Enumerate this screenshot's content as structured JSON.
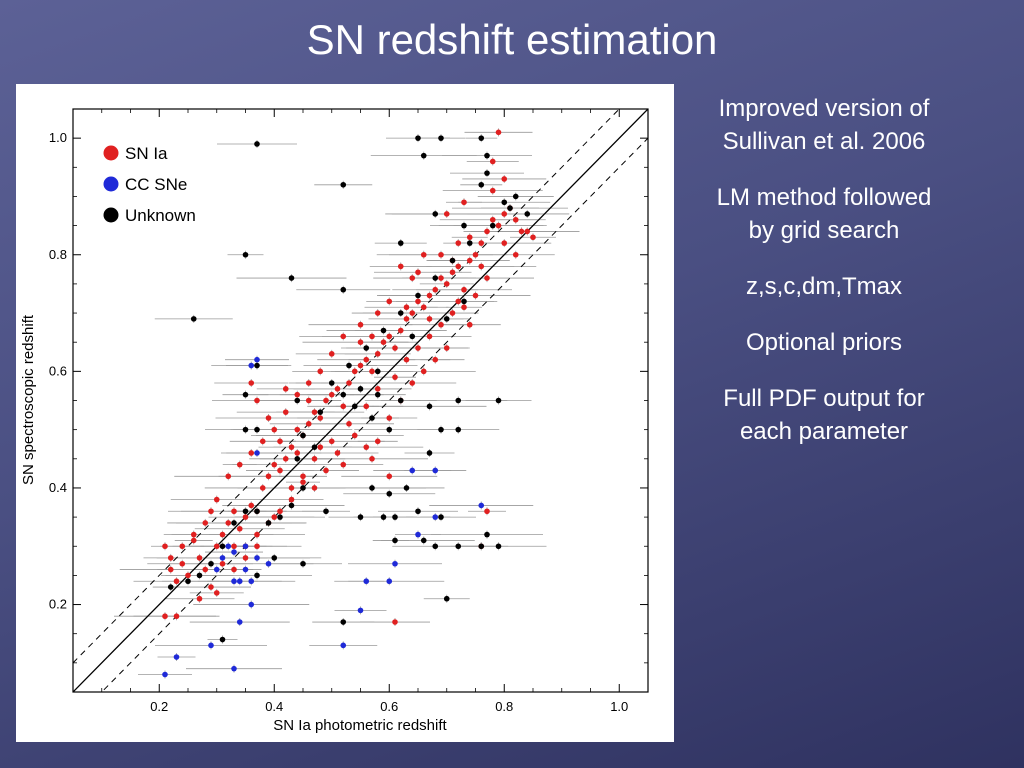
{
  "slide": {
    "title": "SN redshift estimation",
    "bullets": [
      {
        "lines": [
          "Improved version of",
          "Sullivan et al. 2006"
        ]
      },
      {
        "lines": [
          "LM method followed",
          "by grid search"
        ]
      },
      {
        "lines": [
          "z,s,c,dm,Tmax"
        ]
      },
      {
        "lines": [
          "Optional priors"
        ]
      },
      {
        "lines": [
          "Full PDF output for",
          "each parameter"
        ]
      }
    ]
  },
  "chart_data": {
    "type": "scatter",
    "xlabel": "SN Ia photometric redshift",
    "ylabel": "SN spectroscopic redshift",
    "xlim": [
      0.05,
      1.05
    ],
    "ylim": [
      0.05,
      1.05
    ],
    "xticks": [
      "0.2",
      "0.4",
      "0.6",
      "0.8",
      "1.0"
    ],
    "yticks": [
      "0.2",
      "0.4",
      "0.6",
      "0.8",
      "1.0"
    ],
    "reference_lines": [
      "y = x (solid)",
      "y = x ± 0.05 (dashed)"
    ],
    "legend_position": "top-left",
    "series": [
      {
        "name": "SN Ia",
        "color": "#e02020",
        "points": [
          [
            0.21,
            0.3
          ],
          [
            0.22,
            0.26
          ],
          [
            0.23,
            0.24
          ],
          [
            0.24,
            0.27
          ],
          [
            0.25,
            0.25
          ],
          [
            0.26,
            0.31
          ],
          [
            0.27,
            0.28
          ],
          [
            0.28,
            0.26
          ],
          [
            0.29,
            0.23
          ],
          [
            0.3,
            0.3
          ],
          [
            0.31,
            0.27
          ],
          [
            0.32,
            0.34
          ],
          [
            0.33,
            0.36
          ],
          [
            0.34,
            0.33
          ],
          [
            0.35,
            0.35
          ],
          [
            0.36,
            0.37
          ],
          [
            0.37,
            0.36
          ],
          [
            0.38,
            0.4
          ],
          [
            0.39,
            0.42
          ],
          [
            0.4,
            0.44
          ],
          [
            0.41,
            0.43
          ],
          [
            0.42,
            0.45
          ],
          [
            0.43,
            0.47
          ],
          [
            0.44,
            0.5
          ],
          [
            0.45,
            0.49
          ],
          [
            0.46,
            0.51
          ],
          [
            0.47,
            0.53
          ],
          [
            0.48,
            0.52
          ],
          [
            0.49,
            0.55
          ],
          [
            0.5,
            0.56
          ],
          [
            0.51,
            0.57
          ],
          [
            0.52,
            0.54
          ],
          [
            0.53,
            0.58
          ],
          [
            0.54,
            0.6
          ],
          [
            0.55,
            0.61
          ],
          [
            0.56,
            0.62
          ],
          [
            0.57,
            0.6
          ],
          [
            0.58,
            0.63
          ],
          [
            0.59,
            0.65
          ],
          [
            0.6,
            0.66
          ],
          [
            0.61,
            0.64
          ],
          [
            0.62,
            0.67
          ],
          [
            0.63,
            0.69
          ],
          [
            0.64,
            0.7
          ],
          [
            0.65,
            0.72
          ],
          [
            0.66,
            0.71
          ],
          [
            0.67,
            0.73
          ],
          [
            0.68,
            0.74
          ],
          [
            0.69,
            0.76
          ],
          [
            0.7,
            0.75
          ],
          [
            0.71,
            0.77
          ],
          [
            0.72,
            0.78
          ],
          [
            0.73,
            0.74
          ],
          [
            0.74,
            0.79
          ],
          [
            0.75,
            0.8
          ],
          [
            0.76,
            0.82
          ],
          [
            0.77,
            0.84
          ],
          [
            0.78,
            0.86
          ],
          [
            0.79,
            0.85
          ],
          [
            0.8,
            0.87
          ],
          [
            0.81,
            0.88
          ],
          [
            0.82,
            0.86
          ],
          [
            0.83,
            0.84
          ],
          [
            0.78,
            0.91
          ],
          [
            0.8,
            0.93
          ],
          [
            0.79,
            1.01
          ],
          [
            0.78,
            0.96
          ],
          [
            0.73,
            0.89
          ],
          [
            0.7,
            0.87
          ],
          [
            0.66,
            0.8
          ],
          [
            0.64,
            0.76
          ],
          [
            0.62,
            0.78
          ],
          [
            0.6,
            0.72
          ],
          [
            0.58,
            0.7
          ],
          [
            0.55,
            0.68
          ],
          [
            0.52,
            0.66
          ],
          [
            0.5,
            0.63
          ],
          [
            0.48,
            0.6
          ],
          [
            0.46,
            0.58
          ],
          [
            0.44,
            0.56
          ],
          [
            0.42,
            0.53
          ],
          [
            0.4,
            0.5
          ],
          [
            0.38,
            0.48
          ],
          [
            0.36,
            0.46
          ],
          [
            0.34,
            0.44
          ],
          [
            0.32,
            0.42
          ],
          [
            0.3,
            0.38
          ],
          [
            0.28,
            0.34
          ],
          [
            0.26,
            0.32
          ],
          [
            0.24,
            0.3
          ],
          [
            0.22,
            0.28
          ],
          [
            0.21,
            0.18
          ],
          [
            0.23,
            0.18
          ],
          [
            0.27,
            0.21
          ],
          [
            0.3,
            0.22
          ],
          [
            0.33,
            0.26
          ],
          [
            0.35,
            0.3
          ],
          [
            0.37,
            0.32
          ],
          [
            0.4,
            0.35
          ],
          [
            0.43,
            0.38
          ],
          [
            0.45,
            0.42
          ],
          [
            0.47,
            0.45
          ],
          [
            0.5,
            0.48
          ],
          [
            0.53,
            0.51
          ],
          [
            0.56,
            0.54
          ],
          [
            0.58,
            0.57
          ],
          [
            0.61,
            0.59
          ],
          [
            0.63,
            0.62
          ],
          [
            0.65,
            0.64
          ],
          [
            0.67,
            0.66
          ],
          [
            0.69,
            0.68
          ],
          [
            0.71,
            0.7
          ],
          [
            0.73,
            0.71
          ],
          [
            0.75,
            0.73
          ],
          [
            0.77,
            0.76
          ],
          [
            0.72,
            0.72
          ],
          [
            0.74,
            0.68
          ],
          [
            0.7,
            0.64
          ],
          [
            0.68,
            0.62
          ],
          [
            0.66,
            0.6
          ],
          [
            0.64,
            0.58
          ],
          [
            0.62,
            0.55
          ],
          [
            0.6,
            0.52
          ],
          [
            0.58,
            0.48
          ],
          [
            0.56,
            0.47
          ],
          [
            0.54,
            0.49
          ],
          [
            0.51,
            0.46
          ],
          [
            0.49,
            0.43
          ],
          [
            0.47,
            0.4
          ],
          [
            0.45,
            0.41
          ],
          [
            0.43,
            0.4
          ],
          [
            0.41,
            0.36
          ],
          [
            0.39,
            0.34
          ],
          [
            0.37,
            0.3
          ],
          [
            0.35,
            0.28
          ],
          [
            0.33,
            0.3
          ],
          [
            0.31,
            0.32
          ],
          [
            0.29,
            0.36
          ],
          [
            0.61,
            0.17
          ],
          [
            0.76,
            0.3
          ],
          [
            0.77,
            0.36
          ],
          [
            0.57,
            0.45
          ],
          [
            0.6,
            0.42
          ],
          [
            0.52,
            0.44
          ],
          [
            0.48,
            0.47
          ],
          [
            0.44,
            0.46
          ],
          [
            0.41,
            0.48
          ],
          [
            0.39,
            0.52
          ],
          [
            0.37,
            0.55
          ],
          [
            0.36,
            0.58
          ],
          [
            0.42,
            0.57
          ],
          [
            0.46,
            0.55
          ],
          [
            0.55,
            0.65
          ],
          [
            0.57,
            0.66
          ],
          [
            0.63,
            0.71
          ],
          [
            0.67,
            0.69
          ],
          [
            0.71,
            0.79
          ],
          [
            0.74,
            0.83
          ],
          [
            0.76,
            0.78
          ],
          [
            0.8,
            0.82
          ],
          [
            0.82,
            0.8
          ],
          [
            0.84,
            0.84
          ],
          [
            0.85,
            0.83
          ],
          [
            0.72,
            0.82
          ],
          [
            0.69,
            0.8
          ],
          [
            0.65,
            0.77
          ]
        ]
      },
      {
        "name": "CC SNe",
        "color": "#1f2ad8",
        "points": [
          [
            0.21,
            0.08
          ],
          [
            0.23,
            0.11
          ],
          [
            0.29,
            0.13
          ],
          [
            0.33,
            0.09
          ],
          [
            0.36,
            0.61
          ],
          [
            0.37,
            0.62
          ],
          [
            0.33,
            0.24
          ],
          [
            0.35,
            0.26
          ],
          [
            0.37,
            0.28
          ],
          [
            0.39,
            0.27
          ],
          [
            0.31,
            0.28
          ],
          [
            0.33,
            0.29
          ],
          [
            0.35,
            0.3
          ],
          [
            0.36,
            0.2
          ],
          [
            0.34,
            0.17
          ],
          [
            0.34,
            0.24
          ],
          [
            0.52,
            0.13
          ],
          [
            0.55,
            0.19
          ],
          [
            0.56,
            0.24
          ],
          [
            0.6,
            0.24
          ],
          [
            0.61,
            0.27
          ],
          [
            0.64,
            0.43
          ],
          [
            0.68,
            0.43
          ],
          [
            0.65,
            0.32
          ],
          [
            0.68,
            0.35
          ],
          [
            0.76,
            0.37
          ],
          [
            0.36,
            0.24
          ],
          [
            0.37,
            0.46
          ],
          [
            0.32,
            0.3
          ],
          [
            0.3,
            0.26
          ]
        ]
      },
      {
        "name": "Unknown",
        "color": "#000000",
        "points": [
          [
            0.37,
            0.99
          ],
          [
            0.65,
            1.0
          ],
          [
            0.69,
            1.0
          ],
          [
            0.76,
            1.0
          ],
          [
            0.66,
            0.97
          ],
          [
            0.77,
            0.97
          ],
          [
            0.77,
            0.94
          ],
          [
            0.52,
            0.92
          ],
          [
            0.76,
            0.92
          ],
          [
            0.81,
            0.88
          ],
          [
            0.68,
            0.87
          ],
          [
            0.84,
            0.87
          ],
          [
            0.73,
            0.85
          ],
          [
            0.62,
            0.82
          ],
          [
            0.35,
            0.8
          ],
          [
            0.43,
            0.76
          ],
          [
            0.52,
            0.74
          ],
          [
            0.26,
            0.69
          ],
          [
            0.37,
            0.61
          ],
          [
            0.35,
            0.56
          ],
          [
            0.35,
            0.5
          ],
          [
            0.37,
            0.5
          ],
          [
            0.44,
            0.55
          ],
          [
            0.52,
            0.56
          ],
          [
            0.58,
            0.56
          ],
          [
            0.62,
            0.55
          ],
          [
            0.67,
            0.54
          ],
          [
            0.72,
            0.55
          ],
          [
            0.72,
            0.5
          ],
          [
            0.79,
            0.55
          ],
          [
            0.67,
            0.46
          ],
          [
            0.69,
            0.5
          ],
          [
            0.57,
            0.4
          ],
          [
            0.6,
            0.39
          ],
          [
            0.63,
            0.4
          ],
          [
            0.59,
            0.35
          ],
          [
            0.61,
            0.35
          ],
          [
            0.61,
            0.31
          ],
          [
            0.66,
            0.31
          ],
          [
            0.68,
            0.3
          ],
          [
            0.69,
            0.35
          ],
          [
            0.72,
            0.3
          ],
          [
            0.76,
            0.3
          ],
          [
            0.77,
            0.32
          ],
          [
            0.79,
            0.3
          ],
          [
            0.65,
            0.36
          ],
          [
            0.55,
            0.35
          ],
          [
            0.49,
            0.36
          ],
          [
            0.45,
            0.4
          ],
          [
            0.43,
            0.37
          ],
          [
            0.41,
            0.35
          ],
          [
            0.39,
            0.34
          ],
          [
            0.37,
            0.36
          ],
          [
            0.35,
            0.36
          ],
          [
            0.33,
            0.34
          ],
          [
            0.31,
            0.3
          ],
          [
            0.29,
            0.27
          ],
          [
            0.27,
            0.25
          ],
          [
            0.25,
            0.24
          ],
          [
            0.22,
            0.23
          ],
          [
            0.37,
            0.25
          ],
          [
            0.4,
            0.28
          ],
          [
            0.45,
            0.27
          ],
          [
            0.52,
            0.17
          ],
          [
            0.7,
            0.21
          ],
          [
            0.31,
            0.14
          ],
          [
            0.45,
            0.49
          ],
          [
            0.48,
            0.53
          ],
          [
            0.5,
            0.58
          ],
          [
            0.53,
            0.61
          ],
          [
            0.56,
            0.64
          ],
          [
            0.59,
            0.67
          ],
          [
            0.62,
            0.7
          ],
          [
            0.65,
            0.73
          ],
          [
            0.68,
            0.76
          ],
          [
            0.71,
            0.79
          ],
          [
            0.74,
            0.82
          ],
          [
            0.78,
            0.85
          ],
          [
            0.8,
            0.89
          ],
          [
            0.82,
            0.9
          ],
          [
            0.73,
            0.72
          ],
          [
            0.7,
            0.69
          ],
          [
            0.58,
            0.6
          ],
          [
            0.55,
            0.57
          ],
          [
            0.64,
            0.66
          ],
          [
            0.6,
            0.5
          ],
          [
            0.57,
            0.52
          ],
          [
            0.54,
            0.54
          ],
          [
            0.47,
            0.47
          ],
          [
            0.44,
            0.45
          ]
        ]
      }
    ]
  }
}
